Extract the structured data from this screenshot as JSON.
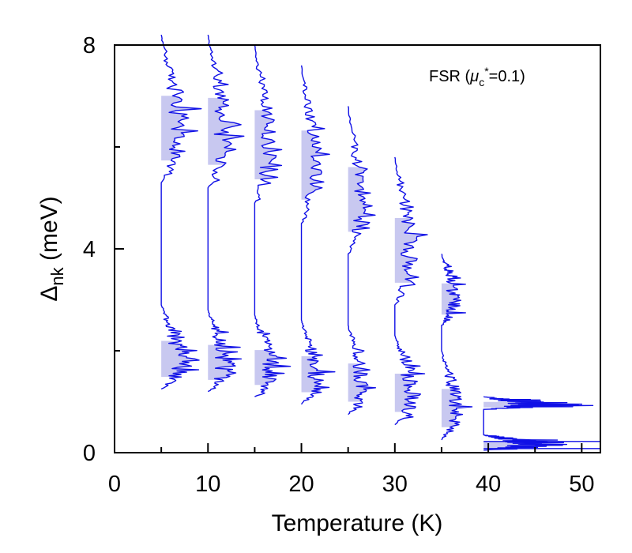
{
  "chart_data": {
    "type": "line",
    "title": "",
    "annotation": {
      "label": "FSR",
      "mu_symbol": "μ",
      "mu_sub": "c",
      "mu_sup": "*",
      "value_text": "=0.1"
    },
    "xlabel": "Temperature (K)",
    "ylabel": {
      "main": "Δ",
      "sub": "nk",
      "unit": " (meV)"
    },
    "xlim": [
      0,
      52
    ],
    "ylim": [
      0,
      8
    ],
    "x_ticks": [
      "0",
      "10",
      "20",
      "30",
      "40",
      "50"
    ],
    "x_tick_values": [
      0,
      10,
      20,
      30,
      40,
      50
    ],
    "y_ticks": [
      "0",
      "4",
      "8"
    ],
    "y_tick_values": [
      0,
      4,
      8
    ],
    "x_minor_tick_values": [
      5,
      15,
      25,
      35,
      45
    ],
    "y_minor_tick_values": [
      2,
      6
    ],
    "grid": false,
    "series_color": "#1010e6",
    "fill_color": "#c8c8f0",
    "series": [
      {
        "temperature": 5,
        "low_band": [
          1.25,
          2.9
        ],
        "high_band": [
          5.3,
          8.2
        ],
        "peak_width": 3.5
      },
      {
        "temperature": 10,
        "low_band": [
          1.2,
          2.8
        ],
        "high_band": [
          5.2,
          8.2
        ],
        "peak_width": 3.0
      },
      {
        "temperature": 15,
        "low_band": [
          1.1,
          2.7
        ],
        "high_band": [
          4.9,
          8.0
        ],
        "peak_width": 2.7
      },
      {
        "temperature": 20,
        "low_band": [
          0.95,
          2.6
        ],
        "high_band": [
          4.5,
          7.6
        ],
        "peak_width": 2.5
      },
      {
        "temperature": 25,
        "low_band": [
          0.75,
          2.5
        ],
        "high_band": [
          3.9,
          6.8
        ],
        "peak_width": 2.3
      },
      {
        "temperature": 30,
        "low_band": [
          0.55,
          2.3
        ],
        "high_band": [
          2.9,
          5.8
        ],
        "peak_width": 2.8
      },
      {
        "temperature": 35,
        "low_band": [
          0.25,
          2.0
        ],
        "high_band": [
          2.5,
          3.9
        ],
        "peak_width": 2.5
      },
      {
        "temperature": 39.5,
        "low_band": [
          0.05,
          0.35
        ],
        "high_band": [
          0.85,
          1.1
        ],
        "peak_width": 9.0
      }
    ]
  }
}
